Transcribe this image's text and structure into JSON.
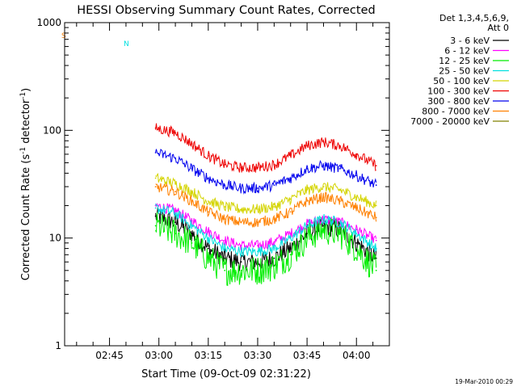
{
  "chart_data": {
    "type": "line",
    "title": "HESSI Observing Summary Count Rates, Corrected",
    "xlabel": "Start Time (09-Oct-09 02:31:22)",
    "ylabel": "Corrected Count Rate (s",
    "ylabel_sup1": "-1",
    "ylabel_mid": " detector",
    "ylabel_sup2": "-1",
    "ylabel_end": ")",
    "yscale": "log",
    "ylim": [
      1,
      1000
    ],
    "xlim": [
      "02:31:22",
      "04:10:00"
    ],
    "yticks": [
      {
        "value": 1,
        "label": "1"
      },
      {
        "value": 10,
        "label": "10"
      },
      {
        "value": 100,
        "label": "100"
      },
      {
        "value": 1000,
        "label": "1000"
      }
    ],
    "xticks": [
      {
        "value": "02:45",
        "label": "02:45"
      },
      {
        "value": "03:00",
        "label": "03:00"
      },
      {
        "value": "03:15",
        "label": "03:15"
      },
      {
        "value": "03:30",
        "label": "03:30"
      },
      {
        "value": "03:45",
        "label": "03:45"
      },
      {
        "value": "04:00",
        "label": "04:00"
      }
    ],
    "legend": {
      "placement": "right",
      "header": [
        "Det 1,3,4,5,6,9,",
        "Att 0"
      ],
      "entries": [
        {
          "label": "3 - 6 keV",
          "color": "#000000"
        },
        {
          "label": "6 - 12 keV",
          "color": "#ff00ff"
        },
        {
          "label": "12 - 25 keV",
          "color": "#00ee00"
        },
        {
          "label": "25 - 50 keV",
          "color": "#00e0e0"
        },
        {
          "label": "50 - 100 keV",
          "color": "#d4d400"
        },
        {
          "label": "100 - 300 keV",
          "color": "#ee0000"
        },
        {
          "label": "300 - 800 keV",
          "color": "#0000ee"
        },
        {
          "label": "800 - 7000 keV",
          "color": "#ff8000"
        },
        {
          "label": "7000 - 20000 keV",
          "color": "#808000"
        }
      ]
    },
    "series": [
      {
        "name": "3 - 6 keV",
        "x": [
          "02:59",
          "03:05",
          "03:10",
          "03:15",
          "03:20",
          "03:25",
          "03:30",
          "03:35",
          "03:40",
          "03:45",
          "03:50",
          "03:55",
          "04:00",
          "04:06"
        ],
        "values": [
          16,
          14,
          11,
          8,
          6.5,
          6,
          6,
          6.5,
          8,
          11,
          13,
          12,
          9,
          6.5
        ]
      },
      {
        "name": "6 - 12 keV",
        "x": [
          "02:59",
          "03:05",
          "03:10",
          "03:15",
          "03:20",
          "03:25",
          "03:30",
          "03:35",
          "03:40",
          "03:45",
          "03:50",
          "03:55",
          "04:00",
          "04:06"
        ],
        "values": [
          20,
          18,
          14.5,
          11.5,
          9.5,
          8.5,
          8.5,
          9.2,
          11,
          13.5,
          15,
          14,
          12,
          9.5
        ]
      },
      {
        "name": "12 - 25 keV",
        "x": [
          "02:59",
          "03:05",
          "03:10",
          "03:15",
          "03:20",
          "03:25",
          "03:30",
          "03:35",
          "03:40",
          "03:45",
          "03:50",
          "03:55",
          "04:00",
          "04:06"
        ],
        "values": [
          13,
          11,
          9,
          6.5,
          5,
          5,
          5,
          5.5,
          7,
          10,
          12,
          11,
          8,
          5
        ]
      },
      {
        "name": "25 - 50 keV",
        "x": [
          "02:59",
          "03:05",
          "03:10",
          "03:15",
          "03:20",
          "03:25",
          "03:30",
          "03:35",
          "03:40",
          "03:45",
          "03:50",
          "03:55",
          "04:00",
          "04:06"
        ],
        "values": [
          19,
          17,
          13,
          10,
          8,
          7.5,
          7.5,
          8,
          10,
          13,
          15,
          14,
          11,
          8
        ]
      },
      {
        "name": "50 - 100 keV",
        "x": [
          "02:59",
          "03:05",
          "03:10",
          "03:15",
          "03:20",
          "03:25",
          "03:30",
          "03:35",
          "03:40",
          "03:45",
          "03:50",
          "03:55",
          "04:00",
          "04:06"
        ],
        "values": [
          36,
          32,
          27,
          22,
          19.5,
          18.5,
          18.5,
          19.5,
          23,
          28,
          30,
          28,
          24,
          20
        ]
      },
      {
        "name": "100 - 300 keV",
        "x": [
          "02:59",
          "03:05",
          "03:10",
          "03:15",
          "03:20",
          "03:25",
          "03:30",
          "03:35",
          "03:40",
          "03:45",
          "03:50",
          "03:55",
          "04:00",
          "04:06"
        ],
        "values": [
          105,
          95,
          75,
          58,
          48,
          45,
          45,
          48,
          58,
          72,
          78,
          72,
          60,
          47
        ]
      },
      {
        "name": "300 - 800 keV",
        "x": [
          "02:59",
          "03:05",
          "03:10",
          "03:15",
          "03:20",
          "03:25",
          "03:30",
          "03:35",
          "03:40",
          "03:45",
          "03:50",
          "03:55",
          "04:00",
          "04:06"
        ],
        "values": [
          62,
          55,
          44,
          36,
          31,
          29,
          29,
          31,
          36,
          44,
          47,
          44,
          38,
          31
        ]
      },
      {
        "name": "800 - 7000 keV",
        "x": [
          "02:59",
          "03:05",
          "03:10",
          "03:15",
          "03:20",
          "03:25",
          "03:30",
          "03:35",
          "03:40",
          "03:45",
          "03:50",
          "03:55",
          "04:00",
          "04:06"
        ],
        "values": [
          30,
          27,
          22,
          17.5,
          15,
          14,
          14,
          15,
          17.5,
          22,
          24,
          22,
          19,
          15.5
        ]
      }
    ],
    "flags": [
      {
        "label": "S",
        "color": "#ff8000",
        "value": 770
      },
      {
        "label": "N",
        "color": "#00e0e0",
        "value": 650
      }
    ],
    "timestamp": "19-Mar-2010 00:29"
  }
}
